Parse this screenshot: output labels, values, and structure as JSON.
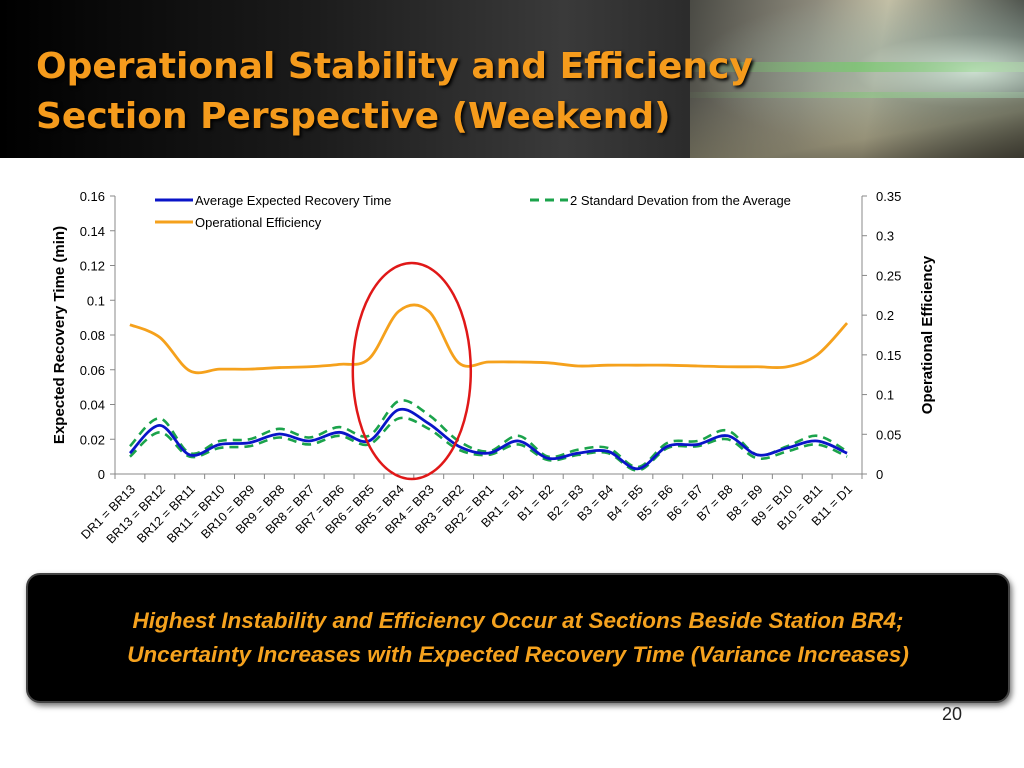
{
  "slide": {
    "title_line1": "Operational Stability and Efficiency",
    "title_line2": "Section Perspective (Weekend)",
    "callout_line1": "Highest Instability and Efficiency Occur at Sections Beside Station BR4;",
    "callout_line2": "Uncertainty Increases with Expected Recovery Time (Variance Increases)",
    "page_number": "20"
  },
  "chart_data": {
    "type": "line",
    "categories": [
      "DR1 = BR13",
      "BR13 = BR12",
      "BR12 = BR11",
      "BR11 = BR10",
      "BR10 = BR9",
      "BR9 = BR8",
      "BR8 = BR7",
      "BR7 = BR6",
      "BR6 = BR5",
      "BR5 = BR4",
      "BR4 = BR3",
      "BR3 = BR2",
      "BR2 = BR1",
      "BR1 = B1",
      "B1 = B2",
      "B2 = B3",
      "B3 = B4",
      "B4 = B5",
      "B5 = B6",
      "B6 = B7",
      "B7 = B8",
      "B8 = B9",
      "B9 = B10",
      "B10 = B11",
      "B11 = D1"
    ],
    "y_left": {
      "label": "Expected Recovery Time (min)",
      "range": [
        0,
        0.16
      ],
      "ticks": [
        "0",
        "0.02",
        "0.04",
        "0.06",
        "0.08",
        "0.1",
        "0.12",
        "0.14",
        "0.16"
      ]
    },
    "y_right": {
      "label": "Operational Efficiency",
      "range": [
        0,
        0.35
      ],
      "ticks": [
        "0",
        "0.05",
        "0.1",
        "0.15",
        "0.2",
        "0.25",
        "0.3",
        "0.35"
      ]
    },
    "series": [
      {
        "name": "Average Expected Recovery Time",
        "axis": "left",
        "color": "#0a14c8",
        "dash": "solid",
        "values": [
          0.012,
          0.028,
          0.011,
          0.017,
          0.018,
          0.023,
          0.019,
          0.024,
          0.019,
          0.037,
          0.029,
          0.016,
          0.012,
          0.019,
          0.009,
          0.012,
          0.013,
          0.003,
          0.016,
          0.017,
          0.022,
          0.011,
          0.015,
          0.019,
          0.012
        ]
      },
      {
        "name": "2 Standard Devation from the Average",
        "axis": "left",
        "color": "#1ba34b",
        "dash": "dashed",
        "values": [
          0.016,
          0.032,
          0.012,
          0.019,
          0.02,
          0.026,
          0.021,
          0.027,
          0.022,
          0.042,
          0.034,
          0.019,
          0.013,
          0.022,
          0.01,
          0.014,
          0.015,
          0.004,
          0.018,
          0.019,
          0.025,
          0.011,
          0.016,
          0.022,
          0.013
        ]
      },
      {
        "name": "2 Standard Devation from the Average",
        "axis": "left",
        "color": "#1ba34b",
        "dash": "dashed",
        "values": [
          0.01,
          0.024,
          0.01,
          0.015,
          0.016,
          0.021,
          0.017,
          0.022,
          0.017,
          0.032,
          0.026,
          0.014,
          0.011,
          0.017,
          0.008,
          0.011,
          0.012,
          0.002,
          0.015,
          0.016,
          0.02,
          0.009,
          0.013,
          0.017,
          0.01
        ]
      },
      {
        "name": "Operational Efficiency",
        "axis": "right",
        "color": "#f5a11c",
        "dash": "solid",
        "values": [
          0.188,
          0.172,
          0.13,
          0.132,
          0.132,
          0.134,
          0.135,
          0.138,
          0.145,
          0.205,
          0.205,
          0.14,
          0.141,
          0.141,
          0.14,
          0.136,
          0.137,
          0.137,
          0.137,
          0.136,
          0.135,
          0.135,
          0.135,
          0.15,
          0.19
        ]
      }
    ],
    "legend": [
      {
        "label": "Average Expected Recovery Time",
        "color": "#0a14c8",
        "dash": "solid"
      },
      {
        "label": "Operational Efficiency",
        "color": "#f5a11c",
        "dash": "solid"
      },
      {
        "label": "2 Standard Devation from the Average",
        "color": "#1ba34b",
        "dash": "dashed"
      }
    ],
    "annotation": {
      "shape": "ellipse",
      "color": "#e01818",
      "around_category": "BR5 = BR4"
    },
    "grid": false
  }
}
